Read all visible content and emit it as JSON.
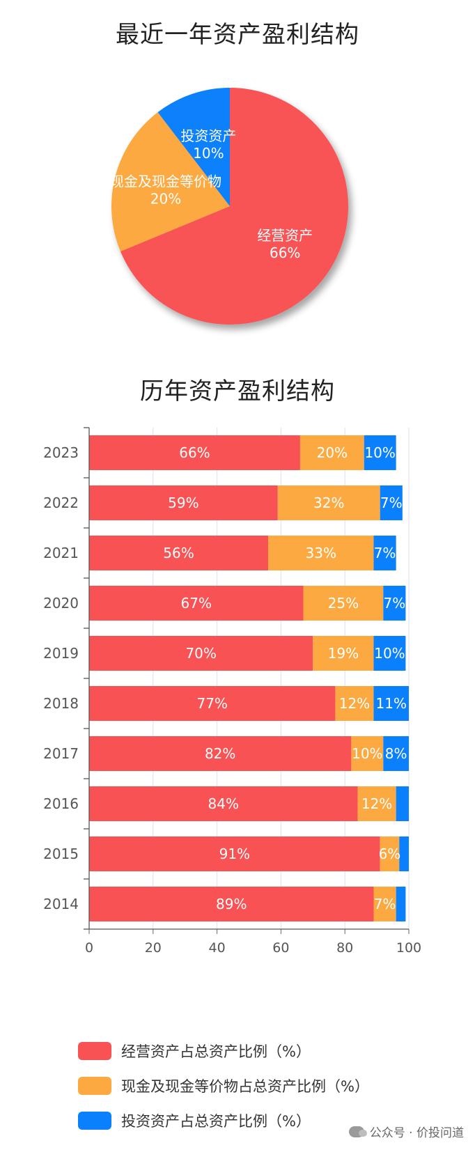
{
  "pie_title": "最近一年资产盈利结构",
  "bar_title": "历年资产盈利结构",
  "colors": {
    "operating": "#F85254",
    "cash": "#FCA942",
    "investment": "#0A80FC"
  },
  "watermark": "公众号 · 价投问道",
  "chart_data": [
    {
      "type": "pie",
      "title": "最近一年资产盈利结构",
      "slices": [
        {
          "label": "经营资产",
          "value": 66,
          "display": "66%",
          "color": "#F85254"
        },
        {
          "label": "现金及现金等价物",
          "value": 20,
          "display": "20%",
          "color": "#FCA942"
        },
        {
          "label": "投资资产",
          "value": 10,
          "display": "10%",
          "color": "#0A80FC"
        }
      ]
    },
    {
      "type": "bar",
      "stacked": true,
      "orientation": "horizontal",
      "title": "历年资产盈利结构",
      "categories": [
        "2023",
        "2022",
        "2021",
        "2020",
        "2019",
        "2018",
        "2017",
        "2016",
        "2015",
        "2014"
      ],
      "xlim": [
        0,
        100
      ],
      "xticks": [
        "0",
        "20",
        "40",
        "60",
        "80",
        "100"
      ],
      "grid": true,
      "legend_position": "bottom",
      "series": [
        {
          "name": "经营资产占总资产比例（%）",
          "color": "#F85254",
          "values": [
            66,
            59,
            56,
            67,
            70,
            77,
            82,
            84,
            91,
            89
          ],
          "labels": [
            "66%",
            "59%",
            "56%",
            "67%",
            "70%",
            "77%",
            "82%",
            "84%",
            "91%",
            "89%"
          ]
        },
        {
          "name": "现金及现金等价物占总资产比例（%）",
          "color": "#FCA942",
          "values": [
            20,
            32,
            33,
            25,
            19,
            12,
            10,
            12,
            6,
            7
          ],
          "labels": [
            "20%",
            "32%",
            "33%",
            "25%",
            "19%",
            "12%",
            "10%",
            "12%",
            "6%",
            "7%"
          ]
        },
        {
          "name": "投资资产占总资产比例（%）",
          "color": "#0A80FC",
          "values": [
            10,
            7,
            7,
            7,
            10,
            11,
            8,
            4,
            3,
            3
          ],
          "labels": [
            "10%",
            "7%",
            "7%",
            "7%",
            "10%",
            "11%",
            "8%",
            "",
            "",
            ""
          ]
        }
      ]
    }
  ]
}
